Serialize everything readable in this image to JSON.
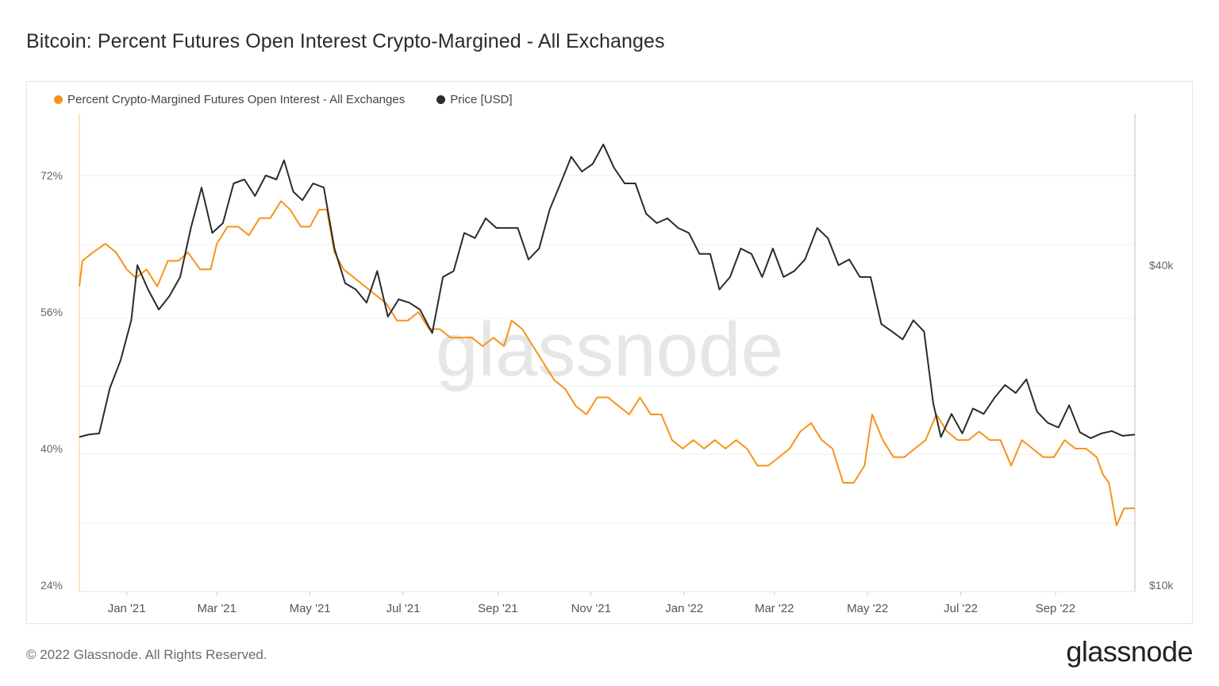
{
  "page": {
    "title": "Bitcoin: Percent Futures Open Interest Crypto-Margined - All Exchanges",
    "footer": "© 2022 Glassnode. All Rights Reserved.",
    "brand": "glassnode",
    "watermark": "glassnode"
  },
  "legend": {
    "items": [
      {
        "label": "Percent Crypto-Margined Futures Open Interest - All Exchanges",
        "color": "#f7931a"
      },
      {
        "label": "Price [USD]",
        "color": "#2b2b2b"
      }
    ],
    "placement": "top-left"
  },
  "chart_data": {
    "type": "line",
    "grid": true,
    "x_range": [
      "2020-12-01",
      "2022-10-23"
    ],
    "x_ticks": [
      {
        "label": "Jan '21",
        "date": "2021-01-01"
      },
      {
        "label": "Mar '21",
        "date": "2021-03-01"
      },
      {
        "label": "May '21",
        "date": "2021-05-01"
      },
      {
        "label": "Jul '21",
        "date": "2021-07-01"
      },
      {
        "label": "Sep '21",
        "date": "2021-09-01"
      },
      {
        "label": "Nov '21",
        "date": "2021-11-01"
      },
      {
        "label": "Jan '22",
        "date": "2022-01-01"
      },
      {
        "label": "Mar '22",
        "date": "2022-03-01"
      },
      {
        "label": "May '22",
        "date": "2022-05-01"
      },
      {
        "label": "Jul '22",
        "date": "2022-07-01"
      },
      {
        "label": "Sep '22",
        "date": "2022-09-01"
      }
    ],
    "y_left": {
      "ticks": [
        {
          "label": "72%",
          "value": 72
        },
        {
          "label": "56%",
          "value": 56
        },
        {
          "label": "40%",
          "value": 40
        },
        {
          "label": "24%",
          "value": 24
        }
      ],
      "range": [
        24,
        72
      ]
    },
    "y_right": {
      "scale": "log",
      "ticks": [
        {
          "label": "$40k",
          "value": 40000
        },
        {
          "label": "$10k",
          "value": 10000
        }
      ],
      "range": [
        10000,
        70000
      ]
    },
    "series": [
      {
        "name": "Percent Crypto-Margined Futures Open Interest - All Exchanges",
        "axis": "left",
        "color": "#f7931a",
        "points": [
          [
            "2020-12-01",
            59
          ],
          [
            "2020-12-03",
            62
          ],
          [
            "2020-12-10",
            63
          ],
          [
            "2020-12-18",
            64
          ],
          [
            "2020-12-25",
            63
          ],
          [
            "2021-01-01",
            61
          ],
          [
            "2021-01-07",
            60
          ],
          [
            "2021-01-14",
            61
          ],
          [
            "2021-01-21",
            59
          ],
          [
            "2021-01-28",
            62
          ],
          [
            "2021-02-04",
            62
          ],
          [
            "2021-02-10",
            63
          ],
          [
            "2021-02-18",
            61
          ],
          [
            "2021-02-25",
            61
          ],
          [
            "2021-03-01",
            64
          ],
          [
            "2021-03-08",
            66
          ],
          [
            "2021-03-15",
            66
          ],
          [
            "2021-03-22",
            65
          ],
          [
            "2021-03-29",
            67
          ],
          [
            "2021-04-05",
            67
          ],
          [
            "2021-04-12",
            69
          ],
          [
            "2021-04-18",
            68
          ],
          [
            "2021-04-25",
            66
          ],
          [
            "2021-05-01",
            66
          ],
          [
            "2021-05-07",
            68
          ],
          [
            "2021-05-12",
            68
          ],
          [
            "2021-05-17",
            63
          ],
          [
            "2021-05-23",
            61
          ],
          [
            "2021-05-30",
            60
          ],
          [
            "2021-06-06",
            59
          ],
          [
            "2021-06-13",
            58
          ],
          [
            "2021-06-20",
            57
          ],
          [
            "2021-06-27",
            55
          ],
          [
            "2021-07-04",
            55
          ],
          [
            "2021-07-11",
            56
          ],
          [
            "2021-07-18",
            54
          ],
          [
            "2021-07-25",
            54
          ],
          [
            "2021-08-01",
            53
          ],
          [
            "2021-08-08",
            53
          ],
          [
            "2021-08-15",
            53
          ],
          [
            "2021-08-22",
            52
          ],
          [
            "2021-08-29",
            53
          ],
          [
            "2021-09-05",
            52
          ],
          [
            "2021-09-10",
            55
          ],
          [
            "2021-09-17",
            54
          ],
          [
            "2021-09-24",
            52
          ],
          [
            "2021-10-01",
            50
          ],
          [
            "2021-10-08",
            48
          ],
          [
            "2021-10-15",
            47
          ],
          [
            "2021-10-22",
            45
          ],
          [
            "2021-10-29",
            44
          ],
          [
            "2021-11-05",
            46
          ],
          [
            "2021-11-12",
            46
          ],
          [
            "2021-11-19",
            45
          ],
          [
            "2021-11-26",
            44
          ],
          [
            "2021-12-03",
            46
          ],
          [
            "2021-12-10",
            44
          ],
          [
            "2021-12-17",
            44
          ],
          [
            "2021-12-24",
            41
          ],
          [
            "2021-12-31",
            40
          ],
          [
            "2022-01-07",
            41
          ],
          [
            "2022-01-14",
            40
          ],
          [
            "2022-01-21",
            41
          ],
          [
            "2022-01-28",
            40
          ],
          [
            "2022-02-04",
            41
          ],
          [
            "2022-02-11",
            40
          ],
          [
            "2022-02-18",
            38
          ],
          [
            "2022-02-25",
            38
          ],
          [
            "2022-03-04",
            39
          ],
          [
            "2022-03-11",
            40
          ],
          [
            "2022-03-18",
            42
          ],
          [
            "2022-03-25",
            43
          ],
          [
            "2022-04-01",
            41
          ],
          [
            "2022-04-08",
            40
          ],
          [
            "2022-04-15",
            36
          ],
          [
            "2022-04-22",
            36
          ],
          [
            "2022-04-29",
            38
          ],
          [
            "2022-05-04",
            44
          ],
          [
            "2022-05-11",
            41
          ],
          [
            "2022-05-18",
            39
          ],
          [
            "2022-05-25",
            39
          ],
          [
            "2022-06-01",
            40
          ],
          [
            "2022-06-08",
            41
          ],
          [
            "2022-06-15",
            44
          ],
          [
            "2022-06-22",
            42
          ],
          [
            "2022-06-29",
            41
          ],
          [
            "2022-07-06",
            41
          ],
          [
            "2022-07-13",
            42
          ],
          [
            "2022-07-20",
            41
          ],
          [
            "2022-07-27",
            41
          ],
          [
            "2022-08-03",
            38
          ],
          [
            "2022-08-10",
            41
          ],
          [
            "2022-08-17",
            40
          ],
          [
            "2022-08-24",
            39
          ],
          [
            "2022-08-31",
            39
          ],
          [
            "2022-09-07",
            41
          ],
          [
            "2022-09-14",
            40
          ],
          [
            "2022-09-21",
            40
          ],
          [
            "2022-09-28",
            39
          ],
          [
            "2022-10-02",
            37
          ],
          [
            "2022-10-06",
            36
          ],
          [
            "2022-10-11",
            31
          ],
          [
            "2022-10-16",
            33
          ],
          [
            "2022-10-23",
            33
          ]
        ]
      },
      {
        "name": "Price [USD]",
        "axis": "right",
        "color": "#2b2b2b",
        "points": [
          [
            "2020-12-01",
            19000
          ],
          [
            "2020-12-07",
            19200
          ],
          [
            "2020-12-14",
            19300
          ],
          [
            "2020-12-21",
            23500
          ],
          [
            "2020-12-28",
            26500
          ],
          [
            "2021-01-04",
            31500
          ],
          [
            "2021-01-08",
            40000
          ],
          [
            "2021-01-15",
            36000
          ],
          [
            "2021-01-22",
            33000
          ],
          [
            "2021-01-29",
            35000
          ],
          [
            "2021-02-05",
            38000
          ],
          [
            "2021-02-12",
            47000
          ],
          [
            "2021-02-19",
            56000
          ],
          [
            "2021-02-26",
            46000
          ],
          [
            "2021-03-05",
            48000
          ],
          [
            "2021-03-12",
            57000
          ],
          [
            "2021-03-19",
            58000
          ],
          [
            "2021-03-26",
            54000
          ],
          [
            "2021-04-02",
            59000
          ],
          [
            "2021-04-09",
            58000
          ],
          [
            "2021-04-14",
            63000
          ],
          [
            "2021-04-20",
            55000
          ],
          [
            "2021-04-26",
            53000
          ],
          [
            "2021-05-03",
            57000
          ],
          [
            "2021-05-10",
            56000
          ],
          [
            "2021-05-17",
            43000
          ],
          [
            "2021-05-24",
            37000
          ],
          [
            "2021-05-31",
            36000
          ],
          [
            "2021-06-07",
            34000
          ],
          [
            "2021-06-14",
            39000
          ],
          [
            "2021-06-21",
            32000
          ],
          [
            "2021-06-28",
            34500
          ],
          [
            "2021-07-05",
            34000
          ],
          [
            "2021-07-12",
            33000
          ],
          [
            "2021-07-20",
            29800
          ],
          [
            "2021-07-27",
            38000
          ],
          [
            "2021-08-03",
            39000
          ],
          [
            "2021-08-10",
            46000
          ],
          [
            "2021-08-17",
            45000
          ],
          [
            "2021-08-24",
            49000
          ],
          [
            "2021-08-31",
            47000
          ],
          [
            "2021-09-07",
            47000
          ],
          [
            "2021-09-14",
            47000
          ],
          [
            "2021-09-21",
            41000
          ],
          [
            "2021-09-28",
            43000
          ],
          [
            "2021-10-05",
            51000
          ],
          [
            "2021-10-12",
            57000
          ],
          [
            "2021-10-19",
            64000
          ],
          [
            "2021-10-26",
            60000
          ],
          [
            "2021-11-02",
            62000
          ],
          [
            "2021-11-09",
            67500
          ],
          [
            "2021-11-16",
            61000
          ],
          [
            "2021-11-23",
            57000
          ],
          [
            "2021-11-30",
            57000
          ],
          [
            "2021-12-07",
            50000
          ],
          [
            "2021-12-14",
            48000
          ],
          [
            "2021-12-21",
            49000
          ],
          [
            "2021-12-28",
            47000
          ],
          [
            "2022-01-04",
            46000
          ],
          [
            "2022-01-11",
            42000
          ],
          [
            "2022-01-18",
            42000
          ],
          [
            "2022-01-24",
            36000
          ],
          [
            "2022-01-31",
            38000
          ],
          [
            "2022-02-07",
            43000
          ],
          [
            "2022-02-14",
            42000
          ],
          [
            "2022-02-21",
            38000
          ],
          [
            "2022-02-28",
            43000
          ],
          [
            "2022-03-07",
            38000
          ],
          [
            "2022-03-14",
            39000
          ],
          [
            "2022-03-21",
            41000
          ],
          [
            "2022-03-29",
            47000
          ],
          [
            "2022-04-05",
            45000
          ],
          [
            "2022-04-12",
            40000
          ],
          [
            "2022-04-19",
            41000
          ],
          [
            "2022-04-26",
            38000
          ],
          [
            "2022-05-03",
            38000
          ],
          [
            "2022-05-10",
            31000
          ],
          [
            "2022-05-17",
            30000
          ],
          [
            "2022-05-24",
            29000
          ],
          [
            "2022-05-31",
            31500
          ],
          [
            "2022-06-07",
            30000
          ],
          [
            "2022-06-13",
            22000
          ],
          [
            "2022-06-18",
            19000
          ],
          [
            "2022-06-25",
            21000
          ],
          [
            "2022-07-02",
            19300
          ],
          [
            "2022-07-09",
            21500
          ],
          [
            "2022-07-16",
            21000
          ],
          [
            "2022-07-23",
            22500
          ],
          [
            "2022-07-30",
            23800
          ],
          [
            "2022-08-06",
            23000
          ],
          [
            "2022-08-13",
            24400
          ],
          [
            "2022-08-20",
            21200
          ],
          [
            "2022-08-27",
            20200
          ],
          [
            "2022-09-03",
            19800
          ],
          [
            "2022-09-10",
            21800
          ],
          [
            "2022-09-17",
            19400
          ],
          [
            "2022-09-24",
            18900
          ],
          [
            "2022-10-01",
            19300
          ],
          [
            "2022-10-08",
            19500
          ],
          [
            "2022-10-15",
            19100
          ],
          [
            "2022-10-23",
            19200
          ]
        ]
      }
    ]
  }
}
